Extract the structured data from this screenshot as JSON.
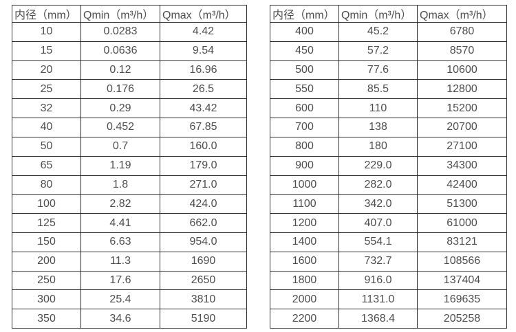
{
  "tables": [
    {
      "name": "small-diameter-flow-range",
      "headers": [
        "内径（mm）",
        "Qmin（m³/h）",
        "Qmax（m³/h）"
      ],
      "rows": [
        [
          "10",
          "0.0283",
          "4.42"
        ],
        [
          "15",
          "0.0636",
          "9.54"
        ],
        [
          "20",
          "0.12",
          "16.96"
        ],
        [
          "25",
          "0.176",
          "26.5"
        ],
        [
          "32",
          "0.29",
          "43.42"
        ],
        [
          "40",
          "0.452",
          "67.85"
        ],
        [
          "50",
          "0.7",
          "160.0"
        ],
        [
          "65",
          "1.19",
          "179.0"
        ],
        [
          "80",
          "1.8",
          "271.0"
        ],
        [
          "100",
          "2.82",
          "424.0"
        ],
        [
          "125",
          "4.41",
          "662.0"
        ],
        [
          "150",
          "6.63",
          "954.0"
        ],
        [
          "200",
          "11.3",
          "1690"
        ],
        [
          "250",
          "17.6",
          "2650"
        ],
        [
          "300",
          "25.4",
          "3810"
        ],
        [
          "350",
          "34.6",
          "5190"
        ]
      ]
    },
    {
      "name": "large-diameter-flow-range",
      "headers": [
        "内径（mm）",
        "Qmin（m³/h）",
        "Qmax（m³/h）"
      ],
      "rows": [
        [
          "400",
          "45.2",
          "6780"
        ],
        [
          "450",
          "57.2",
          "8570"
        ],
        [
          "500",
          "77.6",
          "10600"
        ],
        [
          "550",
          "85.5",
          "12800"
        ],
        [
          "600",
          "110",
          "15200"
        ],
        [
          "700",
          "138",
          "20700"
        ],
        [
          "800",
          "180",
          "27100"
        ],
        [
          "900",
          "229.0",
          "34300"
        ],
        [
          "1000",
          "282.0",
          "42400"
        ],
        [
          "1100",
          "342.0",
          "51300"
        ],
        [
          "1200",
          "407.0",
          "61000"
        ],
        [
          "1400",
          "554.1",
          "83121"
        ],
        [
          "1600",
          "732.7",
          "108566"
        ],
        [
          "1800",
          "916.0",
          "137404"
        ],
        [
          "2000",
          "1131.0",
          "169635"
        ],
        [
          "2200",
          "1368.4",
          "205258"
        ]
      ]
    }
  ],
  "colors": {
    "border": "#2e2e2e",
    "text": "#4d4d4d",
    "background": "#ffffff"
  }
}
